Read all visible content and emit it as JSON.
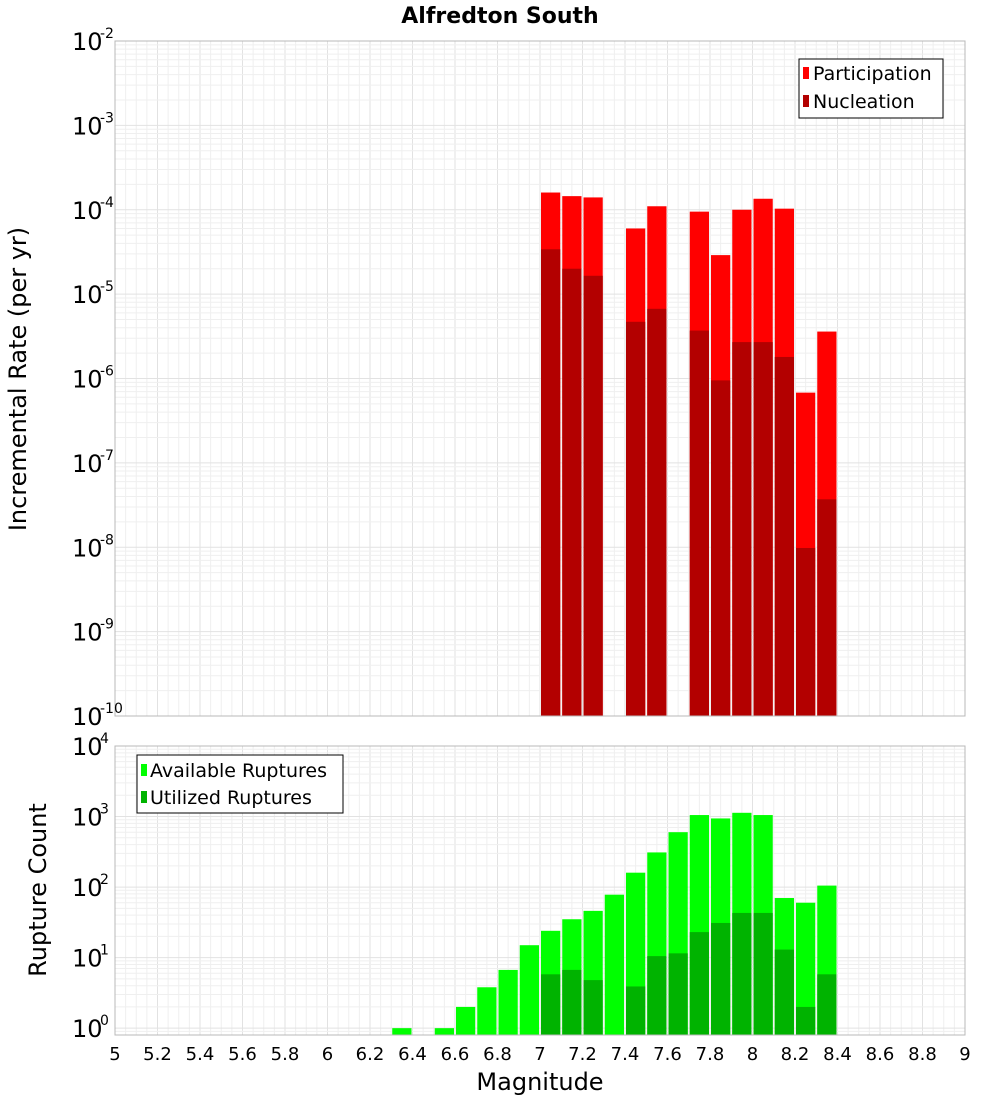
{
  "chart_data": [
    {
      "type": "bar",
      "title": "Alfredton South",
      "ylabel": "Incremental Rate (per yr)",
      "xlabel": "",
      "yscale": "log",
      "ylim": [
        1e-10,
        0.01
      ],
      "xlim": [
        5,
        9
      ],
      "bar_width": 0.1,
      "legend_position": "top-right",
      "y_tick_exponents": [
        -10,
        -9,
        -8,
        -7,
        -6,
        -5,
        -4,
        -3,
        -2
      ],
      "series": [
        {
          "name": "Participation",
          "color": "#ff0000",
          "x": [
            7.05,
            7.15,
            7.25,
            7.45,
            7.55,
            7.75,
            7.85,
            7.95,
            8.05,
            8.15,
            8.25,
            8.35
          ],
          "values": [
            0.00016,
            0.000145,
            0.00014,
            6e-05,
            0.00011,
            9.5e-05,
            2.9e-05,
            0.0001,
            0.000135,
            0.000103,
            6.8e-07,
            3.6e-06
          ]
        },
        {
          "name": "Nucleation",
          "color": "#b30000",
          "x": [
            7.05,
            7.15,
            7.25,
            7.45,
            7.55,
            7.75,
            7.85,
            7.95,
            8.05,
            8.15,
            8.25,
            8.35
          ],
          "values": [
            3.4e-05,
            2e-05,
            1.65e-05,
            4.7e-06,
            6.7e-06,
            3.7e-06,
            9.5e-07,
            2.7e-06,
            2.7e-06,
            1.8e-06,
            9.8e-09,
            3.7e-08
          ]
        }
      ]
    },
    {
      "type": "bar",
      "title": "",
      "ylabel": "Rupture Count",
      "xlabel": "Magnitude",
      "yscale": "log",
      "ylim": [
        0.8,
        10000
      ],
      "xlim": [
        5,
        9
      ],
      "bar_width": 0.1,
      "legend_position": "top-left",
      "y_tick_exponents": [
        0,
        1,
        2,
        3,
        4
      ],
      "x_ticks": [
        "5",
        "5.2",
        "5.4",
        "5.6",
        "5.8",
        "6",
        "6.2",
        "6.4",
        "6.6",
        "6.8",
        "7",
        "7.2",
        "7.4",
        "7.6",
        "7.8",
        "8",
        "8.2",
        "8.4",
        "8.6",
        "8.8",
        "9"
      ],
      "series": [
        {
          "name": "Available Ruptures",
          "color": "#00ff00",
          "x": [
            6.35,
            6.55,
            6.65,
            6.75,
            6.85,
            6.95,
            7.05,
            7.15,
            7.25,
            7.35,
            7.45,
            7.55,
            7.65,
            7.75,
            7.85,
            7.95,
            8.05,
            8.15,
            8.25,
            8.35
          ],
          "values": [
            1,
            1,
            2,
            3.8,
            6.7,
            15,
            24,
            35,
            46,
            78,
            160,
            310,
            600,
            1050,
            940,
            1130,
            1050,
            70,
            60,
            105
          ]
        },
        {
          "name": "Utilized Ruptures",
          "color": "#00b300",
          "x": [
            7.05,
            7.15,
            7.25,
            7.45,
            7.55,
            7.65,
            7.75,
            7.85,
            7.95,
            8.05,
            8.15,
            8.25,
            8.35
          ],
          "values": [
            5.8,
            6.7,
            4.8,
            3.9,
            10.5,
            11.5,
            23,
            31,
            43,
            43,
            13,
            2,
            5.8
          ]
        }
      ]
    }
  ]
}
